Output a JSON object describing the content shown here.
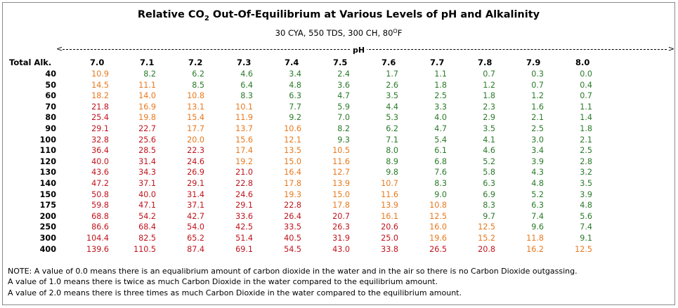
{
  "title": {
    "prefix": "Relative CO",
    "subscript": "2",
    "suffix": " Out-Of-Equilibrium at Various Levels of pH and Alkalinity"
  },
  "subtitle": {
    "text": "30 CYA, 550 TDS, 300 CH, 80",
    "degree": "O",
    "unit": "F"
  },
  "axis": {
    "arrow_left": "<",
    "arrow_right": ">",
    "ph_label": "pH"
  },
  "colors": {
    "red": "#c0141c",
    "orange": "#e8791e",
    "green": "#2a7a2a"
  },
  "table": {
    "row_header": "Total Alk.",
    "ph_columns": [
      "7.0",
      "7.1",
      "7.2",
      "7.3",
      "7.4",
      "7.5",
      "7.6",
      "7.7",
      "7.8",
      "7.9",
      "8.0"
    ],
    "rows": [
      {
        "alk": "40",
        "values": [
          "10.9",
          "8.2",
          "6.2",
          "4.6",
          "3.4",
          "2.4",
          "1.7",
          "1.1",
          "0.7",
          "0.3",
          "0.0"
        ],
        "colors": [
          "o",
          "g",
          "g",
          "g",
          "g",
          "g",
          "g",
          "g",
          "g",
          "g",
          "g"
        ]
      },
      {
        "alk": "50",
        "values": [
          "14.5",
          "11.1",
          "8.5",
          "6.4",
          "4.8",
          "3.6",
          "2.6",
          "1.8",
          "1.2",
          "0.7",
          "0.4"
        ],
        "colors": [
          "o",
          "o",
          "g",
          "g",
          "g",
          "g",
          "g",
          "g",
          "g",
          "g",
          "g"
        ]
      },
      {
        "alk": "60",
        "values": [
          "18.2",
          "14.0",
          "10.8",
          "8.3",
          "6.3",
          "4.7",
          "3.5",
          "2.5",
          "1.8",
          "1.2",
          "0.7"
        ],
        "colors": [
          "o",
          "o",
          "o",
          "g",
          "g",
          "g",
          "g",
          "g",
          "g",
          "g",
          "g"
        ]
      },
      {
        "alk": "70",
        "values": [
          "21.8",
          "16.9",
          "13.1",
          "10.1",
          "7.7",
          "5.9",
          "4.4",
          "3.3",
          "2.3",
          "1.6",
          "1.1"
        ],
        "colors": [
          "r",
          "o",
          "o",
          "o",
          "g",
          "g",
          "g",
          "g",
          "g",
          "g",
          "g"
        ]
      },
      {
        "alk": "80",
        "values": [
          "25.4",
          "19.8",
          "15.4",
          "11.9",
          "9.2",
          "7.0",
          "5.3",
          "4.0",
          "2.9",
          "2.1",
          "1.4"
        ],
        "colors": [
          "r",
          "o",
          "o",
          "o",
          "g",
          "g",
          "g",
          "g",
          "g",
          "g",
          "g"
        ]
      },
      {
        "alk": "90",
        "values": [
          "29.1",
          "22.7",
          "17.7",
          "13.7",
          "10.6",
          "8.2",
          "6.2",
          "4.7",
          "3.5",
          "2.5",
          "1.8"
        ],
        "colors": [
          "r",
          "r",
          "o",
          "o",
          "o",
          "g",
          "g",
          "g",
          "g",
          "g",
          "g"
        ]
      },
      {
        "alk": "100",
        "values": [
          "32.8",
          "25.6",
          "20.0",
          "15.6",
          "12.1",
          "9.3",
          "7.1",
          "5.4",
          "4.1",
          "3.0",
          "2.1"
        ],
        "colors": [
          "r",
          "r",
          "o",
          "o",
          "o",
          "g",
          "g",
          "g",
          "g",
          "g",
          "g"
        ]
      },
      {
        "alk": "110",
        "values": [
          "36.4",
          "28.5",
          "22.3",
          "17.4",
          "13.5",
          "10.5",
          "8.0",
          "6.1",
          "4.6",
          "3.4",
          "2.5"
        ],
        "colors": [
          "r",
          "r",
          "r",
          "o",
          "o",
          "o",
          "g",
          "g",
          "g",
          "g",
          "g"
        ]
      },
      {
        "alk": "120",
        "values": [
          "40.0",
          "31.4",
          "24.6",
          "19.2",
          "15.0",
          "11.6",
          "8.9",
          "6.8",
          "5.2",
          "3.9",
          "2.8"
        ],
        "colors": [
          "r",
          "r",
          "r",
          "o",
          "o",
          "o",
          "g",
          "g",
          "g",
          "g",
          "g"
        ]
      },
      {
        "alk": "130",
        "values": [
          "43.6",
          "34.3",
          "26.9",
          "21.0",
          "16.4",
          "12.7",
          "9.8",
          "7.6",
          "5.8",
          "4.3",
          "3.2"
        ],
        "colors": [
          "r",
          "r",
          "r",
          "r",
          "o",
          "o",
          "g",
          "g",
          "g",
          "g",
          "g"
        ]
      },
      {
        "alk": "140",
        "values": [
          "47.2",
          "37.1",
          "29.1",
          "22.8",
          "17.8",
          "13.9",
          "10.7",
          "8.3",
          "6.3",
          "4.8",
          "3.5"
        ],
        "colors": [
          "r",
          "r",
          "r",
          "r",
          "o",
          "o",
          "o",
          "g",
          "g",
          "g",
          "g"
        ]
      },
      {
        "alk": "150",
        "values": [
          "50.8",
          "40.0",
          "31.4",
          "24.6",
          "19.3",
          "15.0",
          "11.6",
          "9.0",
          "6.9",
          "5.2",
          "3.9"
        ],
        "colors": [
          "r",
          "r",
          "r",
          "r",
          "o",
          "o",
          "o",
          "g",
          "g",
          "g",
          "g"
        ]
      },
      {
        "alk": "175",
        "values": [
          "59.8",
          "47.1",
          "37.1",
          "29.1",
          "22.8",
          "17.8",
          "13.9",
          "10.8",
          "8.3",
          "6.3",
          "4.8"
        ],
        "colors": [
          "r",
          "r",
          "r",
          "r",
          "r",
          "o",
          "o",
          "o",
          "g",
          "g",
          "g"
        ]
      },
      {
        "alk": "200",
        "values": [
          "68.8",
          "54.2",
          "42.7",
          "33.6",
          "26.4",
          "20.7",
          "16.1",
          "12.5",
          "9.7",
          "7.4",
          "5.6"
        ],
        "colors": [
          "r",
          "r",
          "r",
          "r",
          "r",
          "r",
          "o",
          "o",
          "g",
          "g",
          "g"
        ]
      },
      {
        "alk": "250",
        "values": [
          "86.6",
          "68.4",
          "54.0",
          "42.5",
          "33.5",
          "26.3",
          "20.6",
          "16.0",
          "12.5",
          "9.6",
          "7.4"
        ],
        "colors": [
          "r",
          "r",
          "r",
          "r",
          "r",
          "r",
          "r",
          "o",
          "o",
          "g",
          "g"
        ]
      },
      {
        "alk": "300",
        "values": [
          "104.4",
          "82.5",
          "65.2",
          "51.4",
          "40.5",
          "31.9",
          "25.0",
          "19.6",
          "15.2",
          "11.8",
          "9.1"
        ],
        "colors": [
          "r",
          "r",
          "r",
          "r",
          "r",
          "r",
          "r",
          "o",
          "o",
          "o",
          "g"
        ]
      },
      {
        "alk": "400",
        "values": [
          "139.6",
          "110.5",
          "87.4",
          "69.1",
          "54.5",
          "43.0",
          "33.8",
          "26.5",
          "20.8",
          "16.2",
          "12.5"
        ],
        "colors": [
          "r",
          "r",
          "r",
          "r",
          "r",
          "r",
          "r",
          "r",
          "r",
          "o",
          "o"
        ]
      }
    ]
  },
  "notes": {
    "line1": "NOTE: A value of 0.0 means there is an equalibrium amount of carbon dioxide in the water and in the air so there is no Carbon Dioxide outgassing.",
    "line2": "A value of 1.0 means there is twice as much Carbon Dioxide in the water compared to the equilibrium amount.",
    "line3": "A value of 2.0 means there is three times as much Carbon Dioxide in the water compared to the equilibrium amount."
  }
}
